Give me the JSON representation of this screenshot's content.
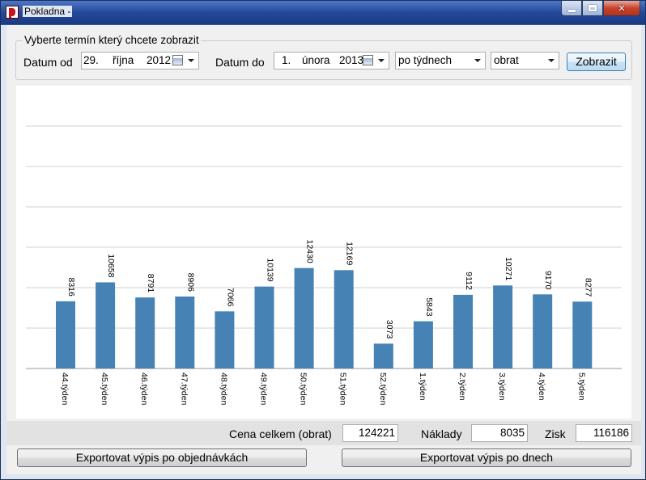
{
  "window": {
    "title": "Pokladna -"
  },
  "filter": {
    "group_title": "Vyberte termín který chcete zobrazit",
    "date_from_label": "Datum od",
    "date_from": {
      "day": "29.",
      "month": "října",
      "year": "2012"
    },
    "date_to_label": "Datum do",
    "date_to": {
      "day": "1.",
      "month": "února",
      "year": "2013"
    },
    "grouping": "po týdnech",
    "metric": "obrat",
    "show_button": "Zobrazit"
  },
  "chart_data": {
    "type": "bar",
    "categories": [
      "44.týden",
      "45.týden",
      "46.týden",
      "47.týden",
      "48.týden",
      "49.týden",
      "50.týden",
      "51.týden",
      "52.týden",
      "1.týden",
      "2.týden",
      "3.týden",
      "4.týden",
      "5.týden"
    ],
    "values": [
      8316,
      10658,
      8791,
      8906,
      7066,
      10139,
      12430,
      12169,
      3073,
      5843,
      9112,
      10271,
      9170,
      8277
    ],
    "ylim": [
      0,
      35000
    ],
    "grid": true,
    "color": "#4682b4"
  },
  "summary": {
    "total_label": "Cena celkem (obrat)",
    "total_value": "124221",
    "costs_label": "Náklady",
    "costs_value": "8035",
    "profit_label": "Zisk",
    "profit_value": "116186"
  },
  "actions": {
    "export_orders": "Exportovat výpis po objednávkách",
    "export_days": "Exportovat výpis po dnech"
  }
}
